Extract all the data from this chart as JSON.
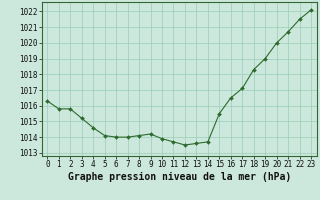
{
  "x": [
    0,
    1,
    2,
    3,
    4,
    5,
    6,
    7,
    8,
    9,
    10,
    11,
    12,
    13,
    14,
    15,
    16,
    17,
    18,
    19,
    20,
    21,
    22,
    23
  ],
  "y": [
    1016.3,
    1015.8,
    1015.8,
    1015.2,
    1014.6,
    1014.1,
    1014.0,
    1014.0,
    1014.1,
    1014.2,
    1013.9,
    1013.7,
    1013.5,
    1013.6,
    1013.7,
    1015.5,
    1016.5,
    1017.1,
    1018.3,
    1019.0,
    1020.0,
    1020.7,
    1021.5,
    1022.1
  ],
  "line_color": "#2d6a2d",
  "marker_color": "#2d6a2d",
  "bg_color": "#cce8dc",
  "grid_color": "#99ccb8",
  "title": "Graphe pression niveau de la mer (hPa)",
  "xlabel_ticks": [
    0,
    1,
    2,
    3,
    4,
    5,
    6,
    7,
    8,
    9,
    10,
    11,
    12,
    13,
    14,
    15,
    16,
    17,
    18,
    19,
    20,
    21,
    22,
    23
  ],
  "yticks": [
    1013,
    1014,
    1015,
    1016,
    1017,
    1018,
    1019,
    1020,
    1021,
    1022
  ],
  "ylim": [
    1012.8,
    1022.6
  ],
  "xlim": [
    -0.5,
    23.5
  ],
  "title_fontsize": 7.0,
  "tick_fontsize": 5.5,
  "line_width": 0.8,
  "marker_size": 2.0
}
